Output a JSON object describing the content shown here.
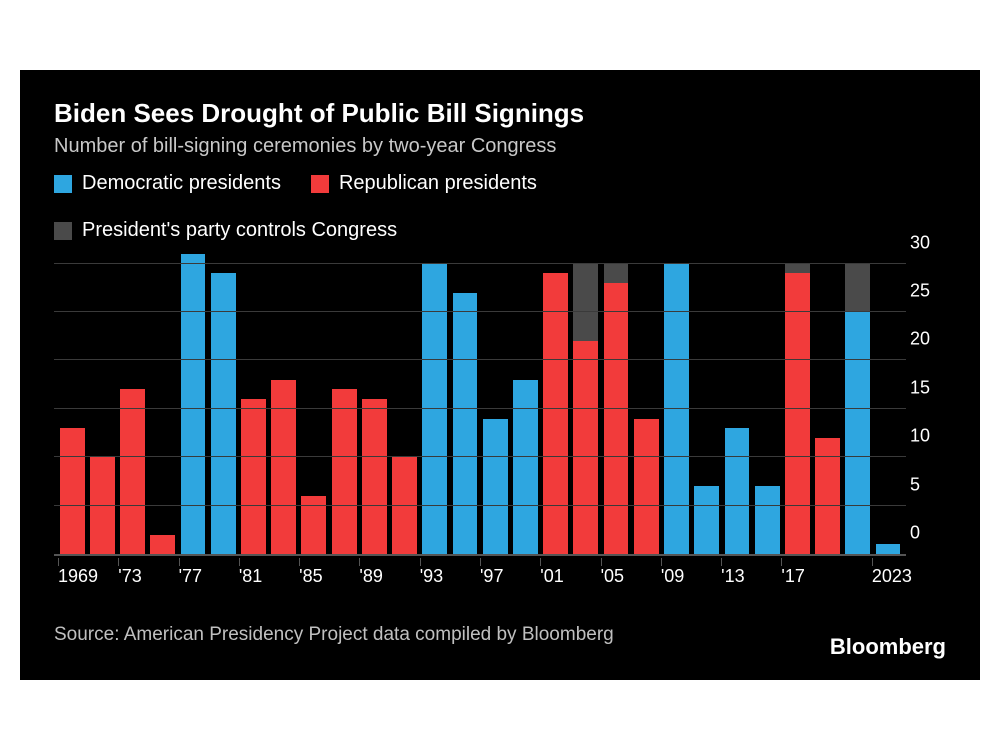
{
  "chart": {
    "type": "bar",
    "title": "Biden Sees Drought of Public Bill Signings",
    "subtitle": "Number of bill-signing ceremonies by two-year Congress",
    "background_color": "#000000",
    "title_color": "#ffffff",
    "subtitle_color": "#c8c8c8",
    "title_fontsize": 26,
    "subtitle_fontsize": 20,
    "axis_color": "#555555",
    "grid_color": "#3a3a3a",
    "tick_label_color": "#ffffff",
    "tick_fontsize": 18,
    "legend": [
      {
        "label": "Democratic presidents",
        "color": "#2ea6e0"
      },
      {
        "label": "Republican presidents",
        "color": "#f23b3b"
      },
      {
        "label": "President's party controls Congress",
        "color": "#4a4a4a"
      }
    ],
    "colors": {
      "democratic": "#2ea6e0",
      "republican": "#f23b3b",
      "controls": "#4a4a4a"
    },
    "y": {
      "min": 0,
      "max": 31,
      "tick_step": 5,
      "ticks": [
        0,
        5,
        10,
        15,
        20,
        25,
        30
      ]
    },
    "x_labels": [
      {
        "year": 1969,
        "text": "1969"
      },
      {
        "year": 1973,
        "text": "'73"
      },
      {
        "year": 1977,
        "text": "'77"
      },
      {
        "year": 1981,
        "text": "'81"
      },
      {
        "year": 1985,
        "text": "'85"
      },
      {
        "year": 1989,
        "text": "'89"
      },
      {
        "year": 1993,
        "text": "'93"
      },
      {
        "year": 1997,
        "text": "'97"
      },
      {
        "year": 2001,
        "text": "'01"
      },
      {
        "year": 2005,
        "text": "'05"
      },
      {
        "year": 2009,
        "text": "'09"
      },
      {
        "year": 2013,
        "text": "'13"
      },
      {
        "year": 2017,
        "text": "'17"
      },
      {
        "year": 2023,
        "text": "2023"
      }
    ],
    "first_year": 1969,
    "last_year": 2023,
    "bars": [
      {
        "year": 1969,
        "party": "republican",
        "value": 13,
        "controls": false
      },
      {
        "year": 1971,
        "party": "republican",
        "value": 10,
        "controls": false
      },
      {
        "year": 1973,
        "party": "republican",
        "value": 17,
        "controls": false
      },
      {
        "year": 1975,
        "party": "republican",
        "value": 2,
        "controls": false
      },
      {
        "year": 1977,
        "party": "democratic",
        "value": 31,
        "controls": true,
        "overlay_to": 31
      },
      {
        "year": 1979,
        "party": "democratic",
        "value": 29,
        "controls": true,
        "overlay_to": 29
      },
      {
        "year": 1981,
        "party": "republican",
        "value": 16,
        "controls": false
      },
      {
        "year": 1983,
        "party": "republican",
        "value": 18,
        "controls": false
      },
      {
        "year": 1985,
        "party": "republican",
        "value": 6,
        "controls": false
      },
      {
        "year": 1987,
        "party": "republican",
        "value": 17,
        "controls": false
      },
      {
        "year": 1989,
        "party": "republican",
        "value": 16,
        "controls": false
      },
      {
        "year": 1991,
        "party": "republican",
        "value": 10,
        "controls": false
      },
      {
        "year": 1993,
        "party": "democratic",
        "value": 30,
        "controls": true,
        "overlay_to": 30
      },
      {
        "year": 1995,
        "party": "democratic",
        "value": 27,
        "controls": false
      },
      {
        "year": 1997,
        "party": "democratic",
        "value": 14,
        "controls": false
      },
      {
        "year": 1999,
        "party": "democratic",
        "value": 18,
        "controls": false
      },
      {
        "year": 2001,
        "party": "republican",
        "value": 29,
        "controls": false
      },
      {
        "year": 2003,
        "party": "republican",
        "value": 22,
        "controls": true,
        "overlay_to": 30
      },
      {
        "year": 2005,
        "party": "republican",
        "value": 28,
        "controls": true,
        "overlay_to": 30
      },
      {
        "year": 2007,
        "party": "republican",
        "value": 14,
        "controls": false
      },
      {
        "year": 2009,
        "party": "democratic",
        "value": 30,
        "controls": true,
        "overlay_to": 30
      },
      {
        "year": 2011,
        "party": "democratic",
        "value": 7,
        "controls": false
      },
      {
        "year": 2013,
        "party": "democratic",
        "value": 13,
        "controls": false
      },
      {
        "year": 2015,
        "party": "democratic",
        "value": 7,
        "controls": false
      },
      {
        "year": 2017,
        "party": "republican",
        "value": 29,
        "controls": true,
        "overlay_to": 30
      },
      {
        "year": 2019,
        "party": "republican",
        "value": 12,
        "controls": false
      },
      {
        "year": 2021,
        "party": "democratic",
        "value": 25,
        "controls": true,
        "overlay_to": 30
      },
      {
        "year": 2023,
        "party": "democratic",
        "value": 1,
        "controls": false
      }
    ],
    "source": "Source: American Presidency Project data compiled by Bloomberg",
    "brand": "Bloomberg"
  }
}
